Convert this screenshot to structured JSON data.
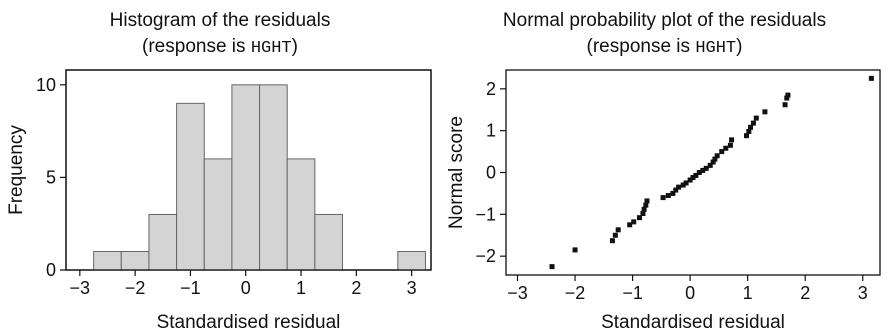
{
  "chart_data": [
    {
      "type": "bar",
      "title": "Histogram of the residuals",
      "subtitle_prefix": "(response is ",
      "subtitle_var": "HGHT",
      "subtitle_suffix": ")",
      "xlabel": "Standardised residual",
      "ylabel": "Frequency",
      "xlim": [
        -3.25,
        3.35
      ],
      "ylim": [
        0,
        10.8
      ],
      "xticks": [
        -3,
        -2,
        -1,
        0,
        1,
        2,
        3
      ],
      "yticks": [
        0,
        5,
        10
      ],
      "bin_edges": [
        -2.75,
        -2.25,
        -1.75,
        -1.25,
        -0.75,
        -0.25,
        0.25,
        0.75,
        1.25,
        1.75,
        2.25,
        2.75,
        3.25
      ],
      "values": [
        1,
        1,
        3,
        9,
        6,
        10,
        10,
        6,
        3,
        0,
        0,
        1
      ],
      "bar_color": "#d4d4d4",
      "edge_color": "#666666",
      "grid": false
    },
    {
      "type": "scatter",
      "title": "Normal probability plot of the residuals",
      "subtitle_prefix": "(response is ",
      "subtitle_var": "HGHT",
      "subtitle_suffix": ")",
      "xlabel": "Standardised residual",
      "ylabel": "Normal score",
      "xlim": [
        -3.2,
        3.3
      ],
      "ylim": [
        -2.45,
        2.45
      ],
      "xticks": [
        -3,
        -2,
        -1,
        0,
        1,
        2,
        3
      ],
      "yticks": [
        -2,
        -1,
        0,
        1,
        2
      ],
      "marker_color": "#111111",
      "grid": false,
      "points": [
        [
          -2.4,
          -2.25
        ],
        [
          -2.0,
          -1.85
        ],
        [
          -1.35,
          -1.63
        ],
        [
          -1.3,
          -1.5
        ],
        [
          -1.25,
          -1.37
        ],
        [
          -1.05,
          -1.25
        ],
        [
          -0.98,
          -1.18
        ],
        [
          -0.88,
          -1.08
        ],
        [
          -0.82,
          -0.98
        ],
        [
          -0.8,
          -0.88
        ],
        [
          -0.77,
          -0.78
        ],
        [
          -0.75,
          -0.68
        ],
        [
          -0.47,
          -0.6
        ],
        [
          -0.38,
          -0.55
        ],
        [
          -0.3,
          -0.5
        ],
        [
          -0.25,
          -0.42
        ],
        [
          -0.2,
          -0.35
        ],
        [
          -0.12,
          -0.3
        ],
        [
          -0.07,
          -0.25
        ],
        [
          0.0,
          -0.18
        ],
        [
          0.05,
          -0.12
        ],
        [
          0.1,
          -0.07
        ],
        [
          0.16,
          0.0
        ],
        [
          0.22,
          0.05
        ],
        [
          0.28,
          0.1
        ],
        [
          0.35,
          0.17
        ],
        [
          0.4,
          0.25
        ],
        [
          0.43,
          0.32
        ],
        [
          0.47,
          0.4
        ],
        [
          0.55,
          0.5
        ],
        [
          0.62,
          0.58
        ],
        [
          0.7,
          0.65
        ],
        [
          0.72,
          0.78
        ],
        [
          0.98,
          0.88
        ],
        [
          1.02,
          0.98
        ],
        [
          1.05,
          1.08
        ],
        [
          1.1,
          1.18
        ],
        [
          1.15,
          1.3
        ],
        [
          1.3,
          1.45
        ],
        [
          1.65,
          1.62
        ],
        [
          1.68,
          1.78
        ],
        [
          1.7,
          1.85
        ],
        [
          3.15,
          2.25
        ]
      ]
    }
  ]
}
